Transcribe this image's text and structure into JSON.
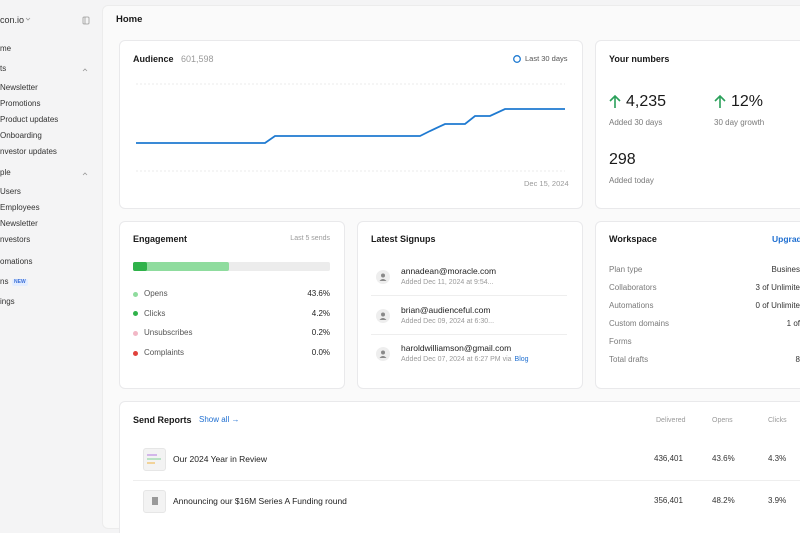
{
  "sidebar": {
    "workspace": "con.io",
    "items": [
      "me",
      "ts",
      "Newsletter",
      "Promotions",
      "Product updates",
      "Onboarding",
      "nvestor updates",
      "ple",
      "Users",
      "Employees",
      "Newsletter",
      "nvestors",
      "omations",
      "ns",
      "ings"
    ],
    "badge": "NEW"
  },
  "header": {
    "title": "Home"
  },
  "audience": {
    "title": "Audience",
    "count": "601,598",
    "range": "Last 30 days",
    "date": "Dec 15, 2024"
  },
  "numbers": {
    "title": "Your numbers",
    "stats": [
      {
        "value": "4,235",
        "label": "Added 30 days"
      },
      {
        "value": "12%",
        "label": "30 day growth"
      },
      {
        "value": "298",
        "label": "Added today"
      }
    ]
  },
  "engagement": {
    "title": "Engagement",
    "range": "Last 5 sends",
    "rows": [
      {
        "label": "Opens",
        "value": "43.6%"
      },
      {
        "label": "Clicks",
        "value": "4.2%"
      },
      {
        "label": "Unsubscribes",
        "value": "0.2%"
      },
      {
        "label": "Complaints",
        "value": "0.0%"
      }
    ]
  },
  "signups": {
    "title": "Latest Signups",
    "rows": [
      {
        "email": "annadean@moracle.com",
        "meta": "Added Dec 11, 2024 at 9:54..."
      },
      {
        "email": "brian@audienceful.com",
        "meta": "Added Dec 09, 2024 at 6:30..."
      },
      {
        "email": "haroldwilliamson@gmail.com",
        "meta": "Added Dec 07, 2024 at 6:27 PM via",
        "link": "Blog"
      }
    ]
  },
  "workspace": {
    "title": "Workspace",
    "action": "Upgrad",
    "rows": [
      {
        "label": "Plan type",
        "value": "Busines"
      },
      {
        "label": "Collaborators",
        "value": "3 of Unlimite"
      },
      {
        "label": "Automations",
        "value": "0 of Unlimite"
      },
      {
        "label": "Custom domains",
        "value": "1 of"
      },
      {
        "label": "Forms"
      },
      {
        "label": "Total drafts",
        "value": "8"
      }
    ]
  },
  "reports": {
    "title": "Send Reports",
    "link": "Show all →",
    "columns": [
      "Delivered",
      "Opens",
      "Clicks"
    ],
    "rows": [
      {
        "name": "Our 2024 Year in Review",
        "delivered": "436,401",
        "opens": "43.6%",
        "clicks": "4.3%"
      },
      {
        "name": "Announcing our $16M Series A Funding round",
        "delivered": "356,401",
        "opens": "48.2%",
        "clicks": "3.9%"
      }
    ]
  }
}
